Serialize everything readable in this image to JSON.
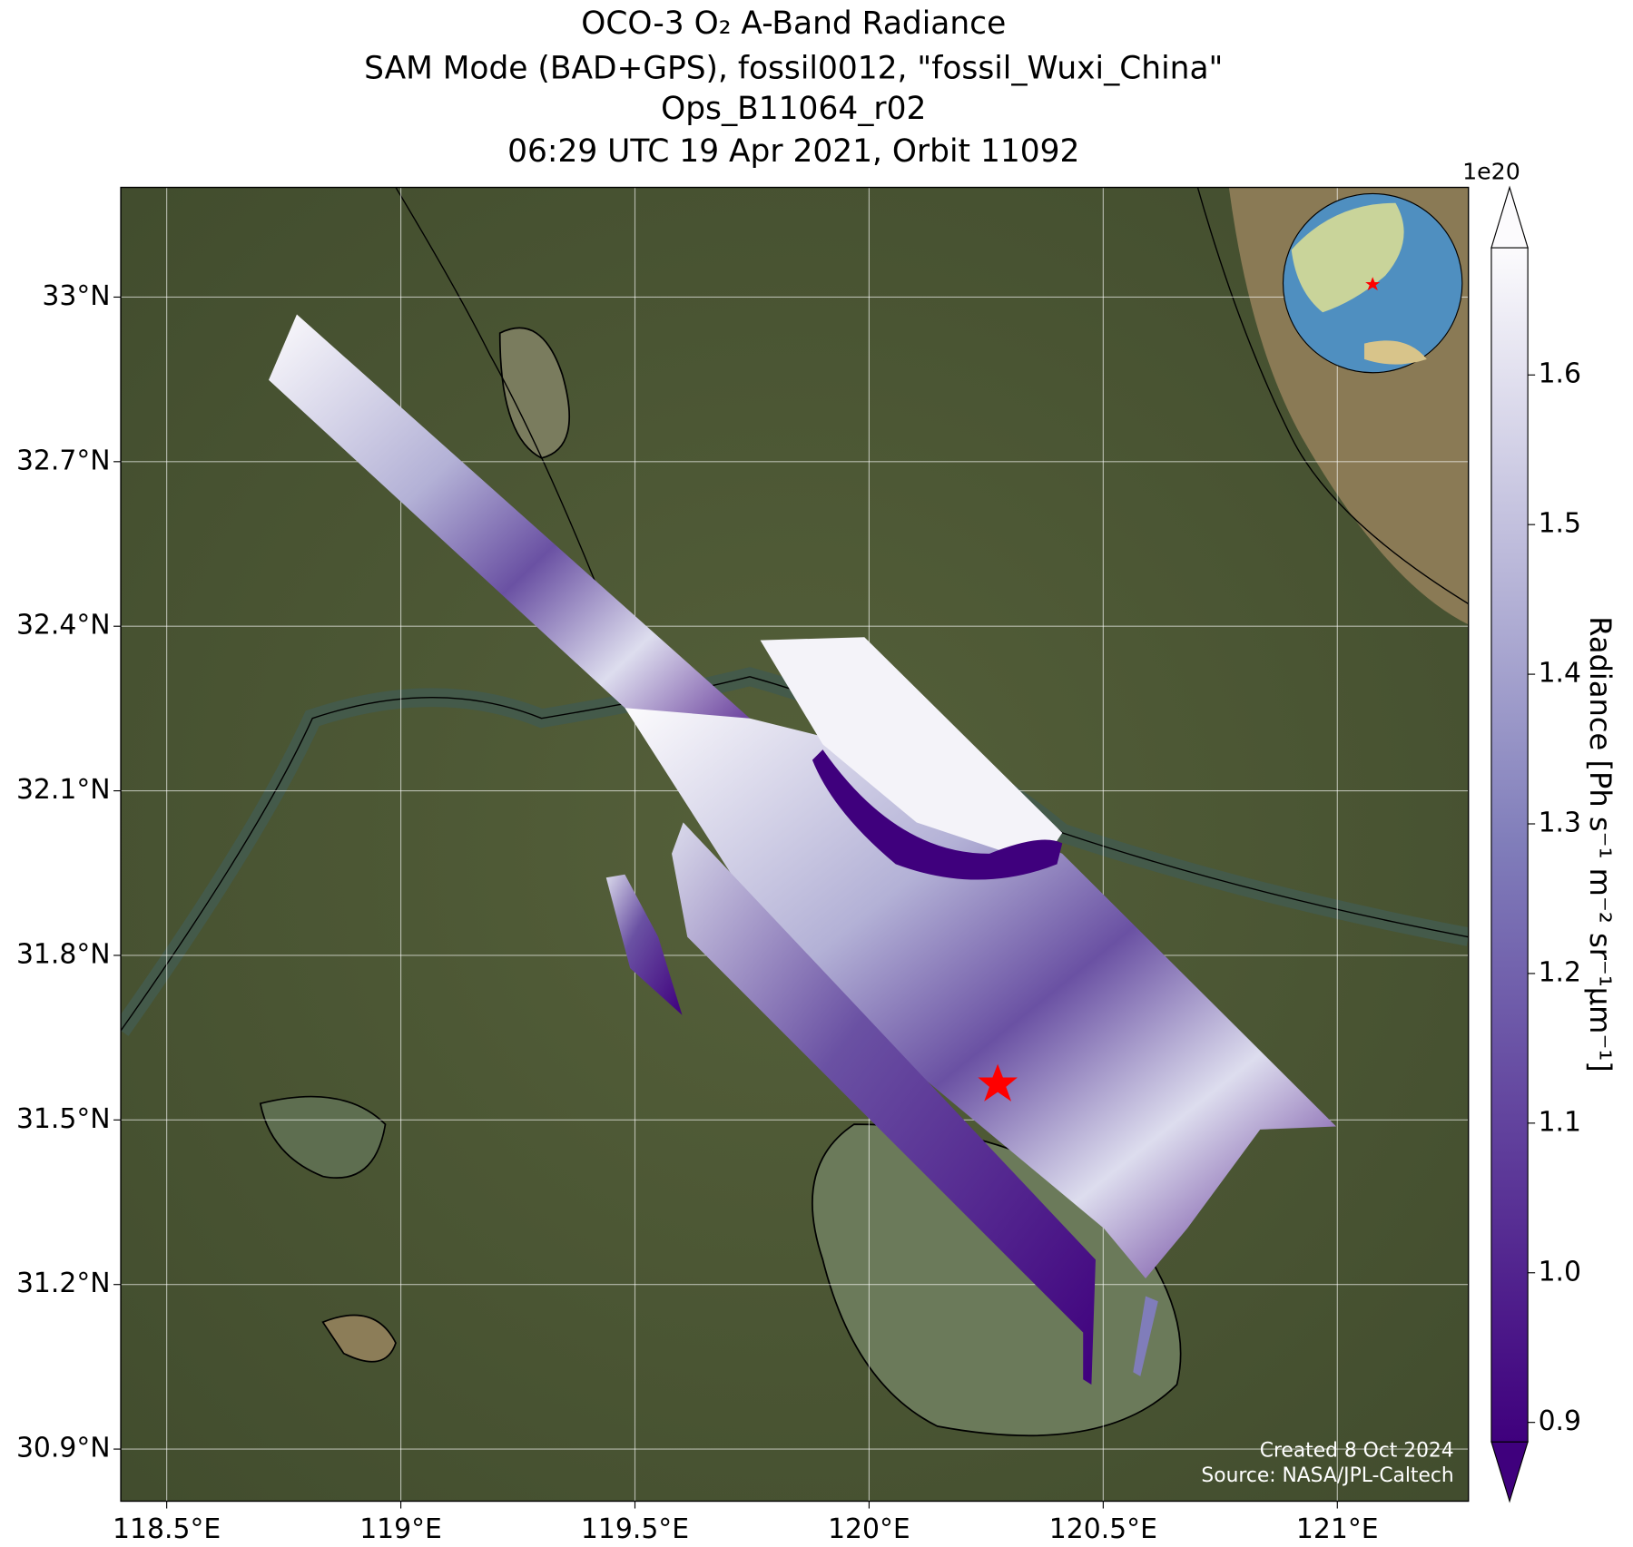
{
  "chart_data": {
    "type": "map",
    "title": [
      "OCO-3 O₂ A-Band Radiance",
      "SAM Mode (BAD+GPS), fossil0012, \"fossil_Wuxi_China\"",
      "Ops_B11064_r02",
      "06:29 UTC 19 Apr 2021, Orbit 11092"
    ],
    "xlim": [
      118.402,
      121.28
    ],
    "ylim": [
      30.805,
      33.2
    ],
    "xticks": [
      {
        "value": 118.5,
        "label": "118.5°E"
      },
      {
        "value": 119,
        "label": "119°E"
      },
      {
        "value": 119.5,
        "label": "119.5°E"
      },
      {
        "value": 120,
        "label": "120°E"
      },
      {
        "value": 120.5,
        "label": "120.5°E"
      },
      {
        "value": 121,
        "label": "121°E"
      }
    ],
    "yticks": [
      {
        "value": 33,
        "label": "33°N"
      },
      {
        "value": 32.7,
        "label": "32.7°N"
      },
      {
        "value": 32.4,
        "label": "32.4°N"
      },
      {
        "value": 32.1,
        "label": "32.1°N"
      },
      {
        "value": 31.8,
        "label": "31.8°N"
      },
      {
        "value": 31.5,
        "label": "31.5°N"
      },
      {
        "value": 31.2,
        "label": "31.2°N"
      },
      {
        "value": 30.9,
        "label": "30.9°N"
      }
    ],
    "grid": true,
    "colorbar": {
      "label": "Radiance [Ph s⁻¹ m⁻² sr⁻¹μm⁻¹]",
      "exponent": "1e20",
      "lim": [
        0.887,
        1.685
      ],
      "ticks": [
        {
          "value": 0.9,
          "label": "0.9"
        },
        {
          "value": 1,
          "label": "1.0"
        },
        {
          "value": 1.1,
          "label": "1.1"
        },
        {
          "value": 1.2,
          "label": "1.2"
        },
        {
          "value": 1.3,
          "label": "1.3"
        },
        {
          "value": 1.4,
          "label": "1.4"
        },
        {
          "value": 1.5,
          "label": "1.5"
        },
        {
          "value": 1.6,
          "label": "1.6"
        }
      ],
      "colors": [
        "#3f007d",
        "#807dba",
        "#fcfbfd"
      ]
    },
    "credits": [
      "Created 8 Oct 2024",
      "Source: NASA/JPL-Caltech"
    ]
  }
}
